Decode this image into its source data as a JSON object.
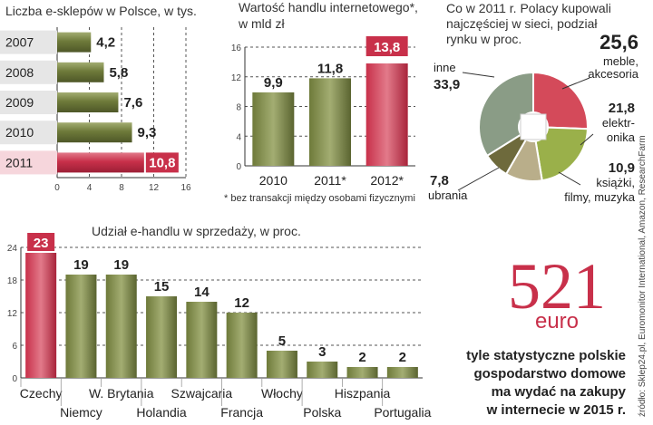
{
  "chart_data": [
    {
      "type": "bar",
      "orientation": "horizontal",
      "title": "Liczba e-sklepów w Polsce, w tys.",
      "categories": [
        "2007",
        "2008",
        "2009",
        "2010",
        "2011"
      ],
      "values": [
        4.2,
        5.8,
        7.6,
        9.3,
        10.8
      ],
      "value_labels": [
        "4,2",
        "5,8",
        "7,6",
        "9,3",
        "10,8"
      ],
      "highlight_index": 4,
      "xlim": [
        0,
        16
      ],
      "xticks": [
        "0",
        "4",
        "8",
        "12",
        "16"
      ],
      "grid": true
    },
    {
      "type": "bar",
      "title": "Wartość handlu internetowego*, w mld zł",
      "categories": [
        "2010",
        "2011*",
        "2012*"
      ],
      "values": [
        9.9,
        11.8,
        13.8
      ],
      "value_labels": [
        "9,9",
        "11,8",
        "13,8"
      ],
      "highlight_index": 2,
      "ylim": [
        0,
        16
      ],
      "yticks": [
        "0",
        "4",
        "8",
        "12",
        "16"
      ],
      "note": "* bez transakcji między osobami fizycznymi",
      "grid": true
    },
    {
      "type": "pie",
      "title": "Co w 2011 r. Polacy kupowali najczęściej w sieci, podział rynku w proc.",
      "slices": [
        {
          "label": "inne",
          "value": 33.9,
          "value_label": "33,9",
          "color": "#8a9c86"
        },
        {
          "label": "meble, akcesoria",
          "value": 25.6,
          "value_label": "25,6",
          "color": "#d44a5a"
        },
        {
          "label": "elektronika",
          "value": 21.8,
          "value_label": "21,8",
          "color": "#9ab04a"
        },
        {
          "label": "książki, filmy, muzyka",
          "value": 10.9,
          "value_label": "10,9",
          "color": "#b9ae8a"
        },
        {
          "label": "ubrania",
          "value": 7.8,
          "value_label": "7,8",
          "color": "#6e6a3c"
        }
      ]
    },
    {
      "type": "bar",
      "title": "Udział e-handlu w sprzedaży, w proc.",
      "categories": [
        "Czechy",
        "Niemcy",
        "W. Brytania",
        "Holandia",
        "Szwajcaria",
        "Francja",
        "Włochy",
        "Polska",
        "Hiszpania",
        "Portugalia"
      ],
      "values": [
        23,
        19,
        19,
        15,
        14,
        12,
        5,
        3,
        2,
        2
      ],
      "value_labels": [
        "23",
        "19",
        "19",
        "15",
        "14",
        "12",
        "5",
        "3",
        "2",
        "2"
      ],
      "highlight_index": 0,
      "ylim": [
        0,
        24
      ],
      "yticks": [
        "0",
        "6",
        "12",
        "18",
        "24"
      ],
      "grid": true
    }
  ],
  "callout": {
    "number": "521",
    "unit": "euro",
    "caption": [
      "tyle statystyczne polskie",
      "gospodarstwo domowe",
      "ma wydać na zakupy",
      "w internecie w 2015 r."
    ]
  },
  "source": "źródło: Sklep24.pl, Euromonitor International, Amazon, ResearchFarm",
  "colors": {
    "olive": "#6e7a3a",
    "olive_light": "#a3ad72",
    "red": "#c8304a",
    "red_light": "#e27a8a"
  }
}
